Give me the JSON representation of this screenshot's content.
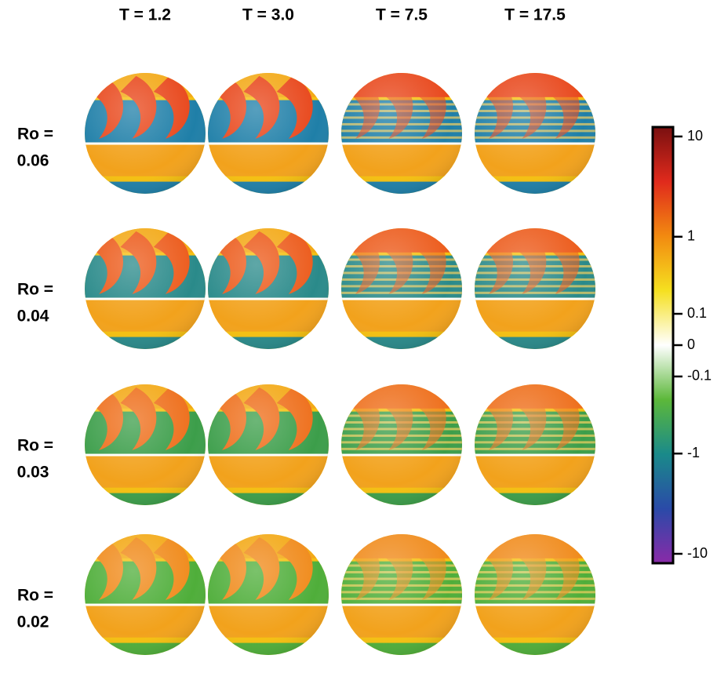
{
  "figure": {
    "column_titles": [
      "T = 1.2",
      "T = 3.0",
      "T = 7.5",
      "T = 17.5"
    ],
    "rows": [
      {
        "label": "Ro =",
        "value": 0.06
      },
      {
        "label": "Ro =",
        "value": 0.04
      },
      {
        "label": "Ro =",
        "value": 0.03
      },
      {
        "label": "Ro =",
        "value": 0.02
      }
    ],
    "colorbar": {
      "scale": "symlog",
      "lim": [
        -10,
        10
      ],
      "ticks": [
        10,
        1,
        0.1,
        0,
        -0.1,
        -1,
        -10
      ],
      "colors": [
        "#7a1010",
        "#e02a1c",
        "#f28a10",
        "#f5e020",
        "#ffffff",
        "#5cb83a",
        "#1a8a8a",
        "#2a4aa8",
        "#8a2aa8"
      ]
    }
  }
}
